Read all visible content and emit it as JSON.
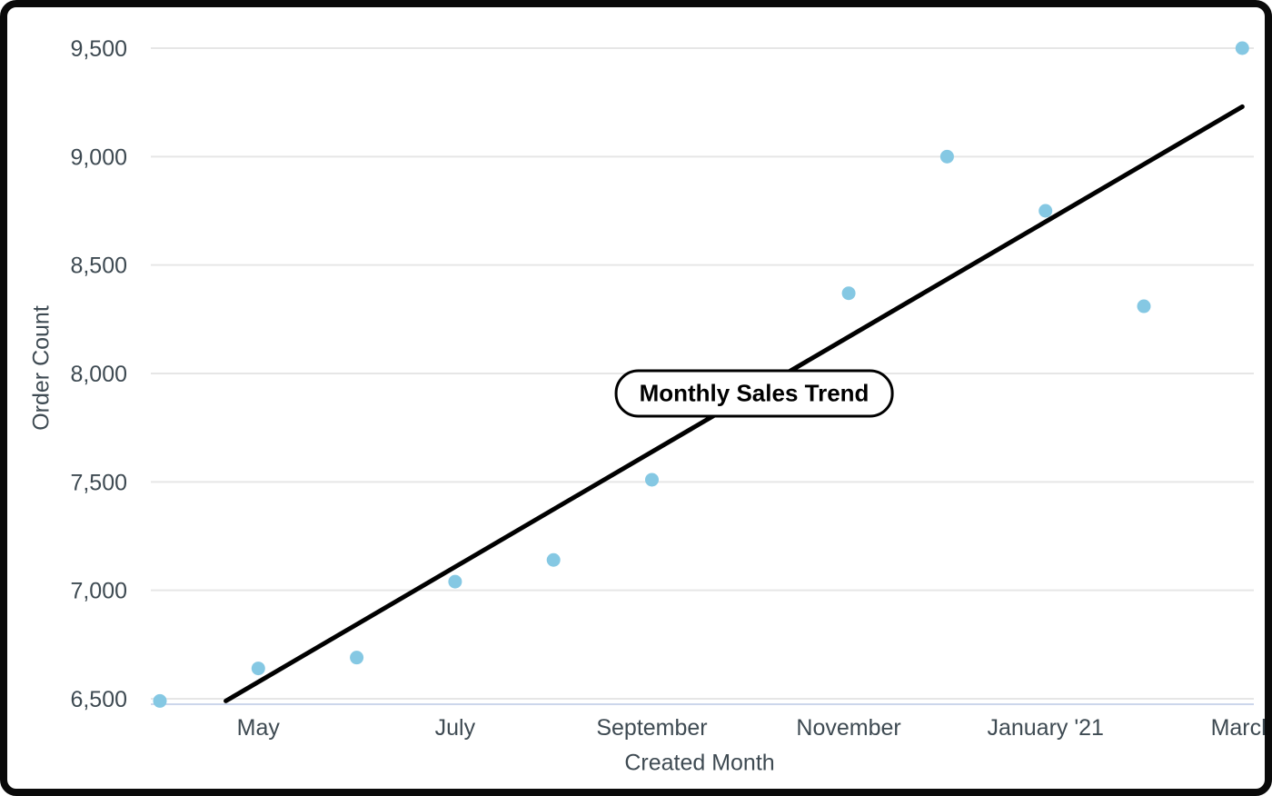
{
  "frame": {
    "background": "#FFFFFF",
    "border_color": "#0A0A0A"
  },
  "chart_data": {
    "type": "scatter",
    "title": "Monthly Sales Trend",
    "xlabel": "Created Month",
    "ylabel": "Order Count",
    "x_axis": {
      "n_slots": 12,
      "first_slot_month": "April '20",
      "tick_indices": [
        1,
        3,
        5,
        7,
        9,
        11
      ],
      "tick_labels": [
        "May",
        "July",
        "September",
        "November",
        "January '21",
        "March"
      ]
    },
    "y_axis": {
      "min": 6500,
      "max": 9500,
      "tick_step": 500,
      "tick_labels": [
        "6,500",
        "7,000",
        "7,500",
        "8,000",
        "8,500",
        "9,000",
        "9,500"
      ]
    },
    "points": [
      {
        "slot": 0,
        "value": 6490
      },
      {
        "slot": 1,
        "value": 6640
      },
      {
        "slot": 2,
        "value": 6690
      },
      {
        "slot": 3,
        "value": 7040
      },
      {
        "slot": 4,
        "value": 7140
      },
      {
        "slot": 5,
        "value": 7510
      },
      {
        "slot": 7,
        "value": 8370
      },
      {
        "slot": 8,
        "value": 9000
      },
      {
        "slot": 9,
        "value": 8750
      },
      {
        "slot": 10,
        "value": 8310
      },
      {
        "slot": 11,
        "value": 9500
      }
    ],
    "trend_line": {
      "start": {
        "slot": 0.67,
        "value": 6490
      },
      "end": {
        "slot": 11,
        "value": 9230
      }
    },
    "grid": true,
    "legend_position": "none",
    "colors": {
      "point": "#85C8E3",
      "trend": "#000000",
      "grid": "#E6E6E6",
      "axis_line": "#CCD6EB",
      "label": "#3E4A52",
      "badge_border": "#000000",
      "badge_background": "#FFFFFF",
      "badge_text": "#000000"
    }
  }
}
